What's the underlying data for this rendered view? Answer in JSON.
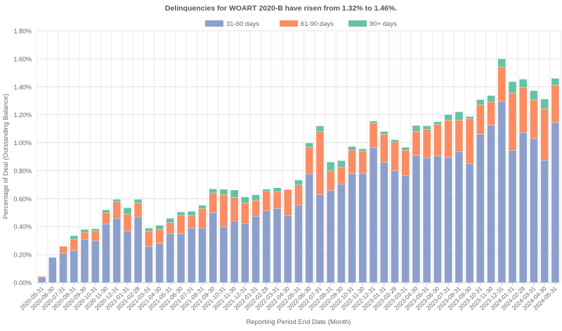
{
  "chart_data": {
    "type": "bar",
    "stacked": true,
    "title": "Delinquencies for WOART 2020-B have risen from 1.32% to 1.46%.",
    "xlabel": "Reporting Period End Date (Month)",
    "ylabel": "Percentage of Deal (Outstanding Balance)",
    "ylim": [
      0,
      1.8
    ],
    "yticks": [
      "0.00%",
      "0.20%",
      "0.40%",
      "0.60%",
      "0.80%",
      "1.00%",
      "1.20%",
      "1.40%",
      "1.60%",
      "1.80%"
    ],
    "grid": true,
    "legend_position": "top-center",
    "categories": [
      "2020-05-31",
      "2020-06-30",
      "2020-07-31",
      "2020-08-31",
      "2020-09-30",
      "2020-10-31",
      "2020-11-30",
      "2020-12-31",
      "2021-01-31",
      "2021-02-28",
      "2021-03-31",
      "2021-04-30",
      "2021-05-31",
      "2021-06-30",
      "2021-07-31",
      "2021-08-31",
      "2021-09-30",
      "2021-10-31",
      "2021-11-30",
      "2021-12-31",
      "2022-01-31",
      "2022-02-28",
      "2022-03-31",
      "2022-04-30",
      "2022-05-31",
      "2022-06-30",
      "2022-07-31",
      "2022-08-31",
      "2022-09-30",
      "2022-10-31",
      "2022-11-30",
      "2022-12-31",
      "2023-01-31",
      "2023-02-28",
      "2023-03-31",
      "2023-04-30",
      "2023-05-31",
      "2023-06-30",
      "2023-07-31",
      "2023-08-31",
      "2023-09-30",
      "2023-10-31",
      "2023-11-30",
      "2023-12-31",
      "2024-01-31",
      "2024-02-29",
      "2024-03-31",
      "2024-04-30",
      "2024-05-31"
    ],
    "series": [
      {
        "name": "31-60 days",
        "color": "#8da0cb",
        "values": [
          0.04,
          0.18,
          0.21,
          0.23,
          0.31,
          0.3,
          0.42,
          0.46,
          0.37,
          0.47,
          0.26,
          0.28,
          0.35,
          0.35,
          0.39,
          0.39,
          0.5,
          0.4,
          0.44,
          0.425,
          0.475,
          0.513,
          0.53,
          0.48,
          0.553,
          0.777,
          0.63,
          0.66,
          0.703,
          0.778,
          0.782,
          0.965,
          0.862,
          0.8,
          0.765,
          0.909,
          0.892,
          0.907,
          0.896,
          0.936,
          0.85,
          1.061,
          1.126,
          1.297,
          0.946,
          1.073,
          1.031,
          0.874,
          1.146
        ]
      },
      {
        "name": "61-90 days",
        "color": "#fc8d62",
        "values": [
          0.005,
          0,
          0.05,
          0.08,
          0.05,
          0.07,
          0.08,
          0.12,
          0.12,
          0.1,
          0.11,
          0.1,
          0.08,
          0.13,
          0.09,
          0.14,
          0.142,
          0.23,
          0.17,
          0.145,
          0.112,
          0.14,
          0.118,
          0.185,
          0.145,
          0.191,
          0.45,
          0.14,
          0.124,
          0.169,
          0.16,
          0.175,
          0.198,
          0.204,
          0.181,
          0.172,
          0.204,
          0.224,
          0.265,
          0.225,
          0.323,
          0.211,
          0.166,
          0.245,
          0.411,
          0.322,
          0.276,
          0.369,
          0.266
        ]
      },
      {
        "name": "90+ days",
        "color": "#66c2a5",
        "values": [
          0,
          0,
          0,
          0.025,
          0.02,
          0.015,
          0.02,
          0.015,
          0.045,
          0.025,
          0.02,
          0.03,
          0.03,
          0.025,
          0.03,
          0.023,
          0.028,
          0.037,
          0.052,
          0.042,
          0.041,
          0.015,
          0.03,
          0.002,
          0.035,
          0.03,
          0.04,
          0.062,
          0.045,
          0.026,
          0.015,
          0.015,
          0.021,
          0.018,
          0.021,
          0.042,
          0.025,
          0.019,
          0.04,
          0.06,
          0.015,
          0.036,
          0.045,
          0.058,
          0.08,
          0.059,
          0.065,
          0.07,
          0.048
        ]
      }
    ]
  }
}
